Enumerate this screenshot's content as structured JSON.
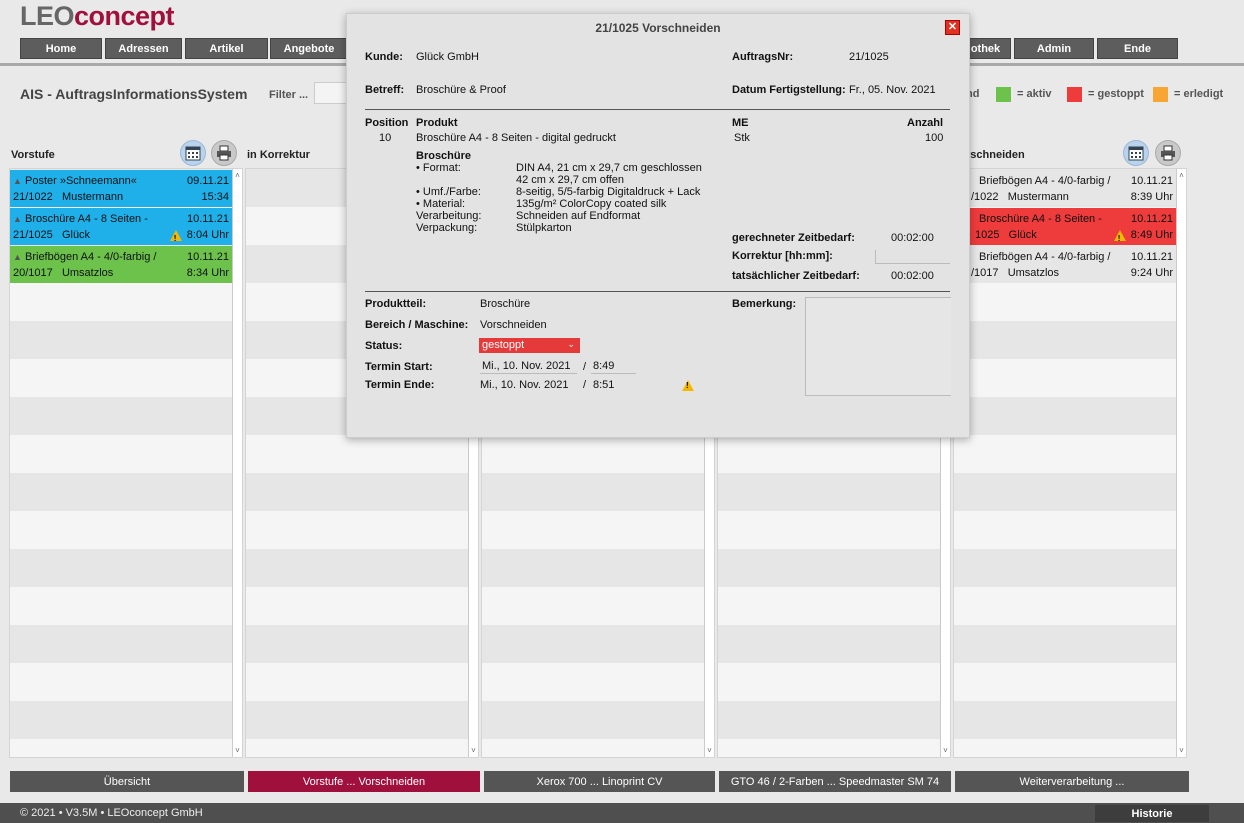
{
  "brand": {
    "leo": "LEO",
    "concept": "concept",
    "accent": "#a0103d"
  },
  "nav": {
    "home": "Home",
    "adressen": "Adressen",
    "artikel": "Artikel",
    "angebote": "Angebote",
    "bibliothek": "othek",
    "admin": "Admin",
    "ende": "Ende"
  },
  "app_title": "AIS - AuftragsInformationsSystem",
  "filter_label": "Filter ...",
  "legend": {
    "prefix": "nd",
    "aktiv": "= aktiv",
    "gestoppt": "= gestoppt",
    "erledigt": "= erledigt",
    "colors": {
      "aktiv": "#6cc24a",
      "gestoppt": "#ee3b3b",
      "erledigt": "#f7a533"
    }
  },
  "columns": {
    "vorstufe": {
      "title": "Vorstufe",
      "cards": [
        {
          "title": "Poster »Schneemann«",
          "date": "09.11.21",
          "nr": "21/1022",
          "customer": "Mustermann",
          "time": "15:34",
          "color": "#1fb0ea"
        },
        {
          "title": "Broschüre A4 - 8 Seiten -",
          "date": "10.11.21",
          "nr": "21/1025",
          "customer": "Glück",
          "time": "8:04 Uhr",
          "color": "#1fb0ea"
        },
        {
          "title": "Briefbögen A4 - 4/0-farbig /",
          "date": "10.11.21",
          "nr": "20/1017",
          "customer": "Umsatzlos",
          "time": "8:34 Uhr",
          "color": "#6cc24a"
        }
      ]
    },
    "korrektur": {
      "title": "in Korrektur"
    },
    "vorschneiden": {
      "title": "rschneiden",
      "cards": [
        {
          "title": "Briefbögen A4 - 4/0-farbig /",
          "date": "10.11.21",
          "nr": "/1022",
          "customer": "Mustermann",
          "time": "8:39 Uhr",
          "color": "transparent"
        },
        {
          "title": "Broschüre A4 - 8 Seiten -",
          "date": "10.11.21",
          "nr": "1025",
          "customer": "Glück",
          "time": "8:49 Uhr",
          "color": "#ee3b3b"
        },
        {
          "title": "Briefbögen A4 - 4/0-farbig /",
          "date": "10.11.21",
          "nr": "/1017",
          "customer": "Umsatzlos",
          "time": "9:24 Uhr",
          "color": "transparent"
        }
      ]
    }
  },
  "bottom_tabs": {
    "uebersicht": "Übersicht",
    "vorstufe": "Vorstufe ... Vorschneiden",
    "xerox": "Xerox 700 ... Linoprint CV",
    "gto": "GTO 46 / 2-Farben ... Speedmaster SM 74",
    "weiter": "Weiterverarbeitung ..."
  },
  "footer": {
    "copyright": "© 2021 • V3.5M • LEOconcept GmbH",
    "historie": "Historie"
  },
  "modal": {
    "title": "21/1025 Vorschneiden",
    "kunde_label": "Kunde:",
    "kunde": "Glück GmbH",
    "auftragsnr_label": "AuftragsNr:",
    "auftragsnr": "21/1025",
    "betreff_label": "Betreff:",
    "betreff": "Broschüre & Proof",
    "fertig_label": "Datum Fertigstellung:",
    "fertig": "Fr., 05. Nov. 2021",
    "head_position": "Position",
    "head_produkt": "Produkt",
    "head_me": "ME",
    "head_anzahl": "Anzahl",
    "position": "10",
    "produkt": "Broschüre A4 - 8 Seiten - digital gedruckt",
    "me": "Stk",
    "anzahl": "100",
    "spec_title": "Broschüre",
    "spec_labels": {
      "format": "• Format:",
      "umf": "• Umf./Farbe:",
      "material": "• Material:",
      "verarbeitung": "Verarbeitung:",
      "verpackung": "Verpackung:"
    },
    "spec_values": {
      "format1": "DIN A4, 21 cm x 29,7 cm geschlossen",
      "format2": "42 cm x 29,7 cm offen",
      "umf": "8-seitig, 5/5-farbig Digitaldruck + Lack",
      "material": "135g/m² ColorCopy coated silk",
      "verarbeitung": "Schneiden auf Endformat",
      "verpackung": "Stülpkarton"
    },
    "zeit_gerechnet_label": "gerechneter Zeitbedarf:",
    "zeit_gerechnet": "00:02:00",
    "korrektur_label": "Korrektur [hh:mm]:",
    "zeit_tatsaechlich_label": "tatsächlicher Zeitbedarf:",
    "zeit_tatsaechlich": "00:02:00",
    "produktteil_label": "Produktteil:",
    "produktteil": "Broschüre",
    "bereich_label": "Bereich / Maschine:",
    "bereich": "Vorschneiden",
    "status_label": "Status:",
    "status": "gestoppt",
    "start_label": "Termin Start:",
    "start_date": "Mi., 10. Nov. 2021",
    "start_time": "8:49",
    "ende_label": "Termin Ende:",
    "ende_date": "Mi., 10. Nov. 2021",
    "ende_time": "8:51",
    "slash": "/",
    "bemerkung_label": "Bemerkung:"
  }
}
